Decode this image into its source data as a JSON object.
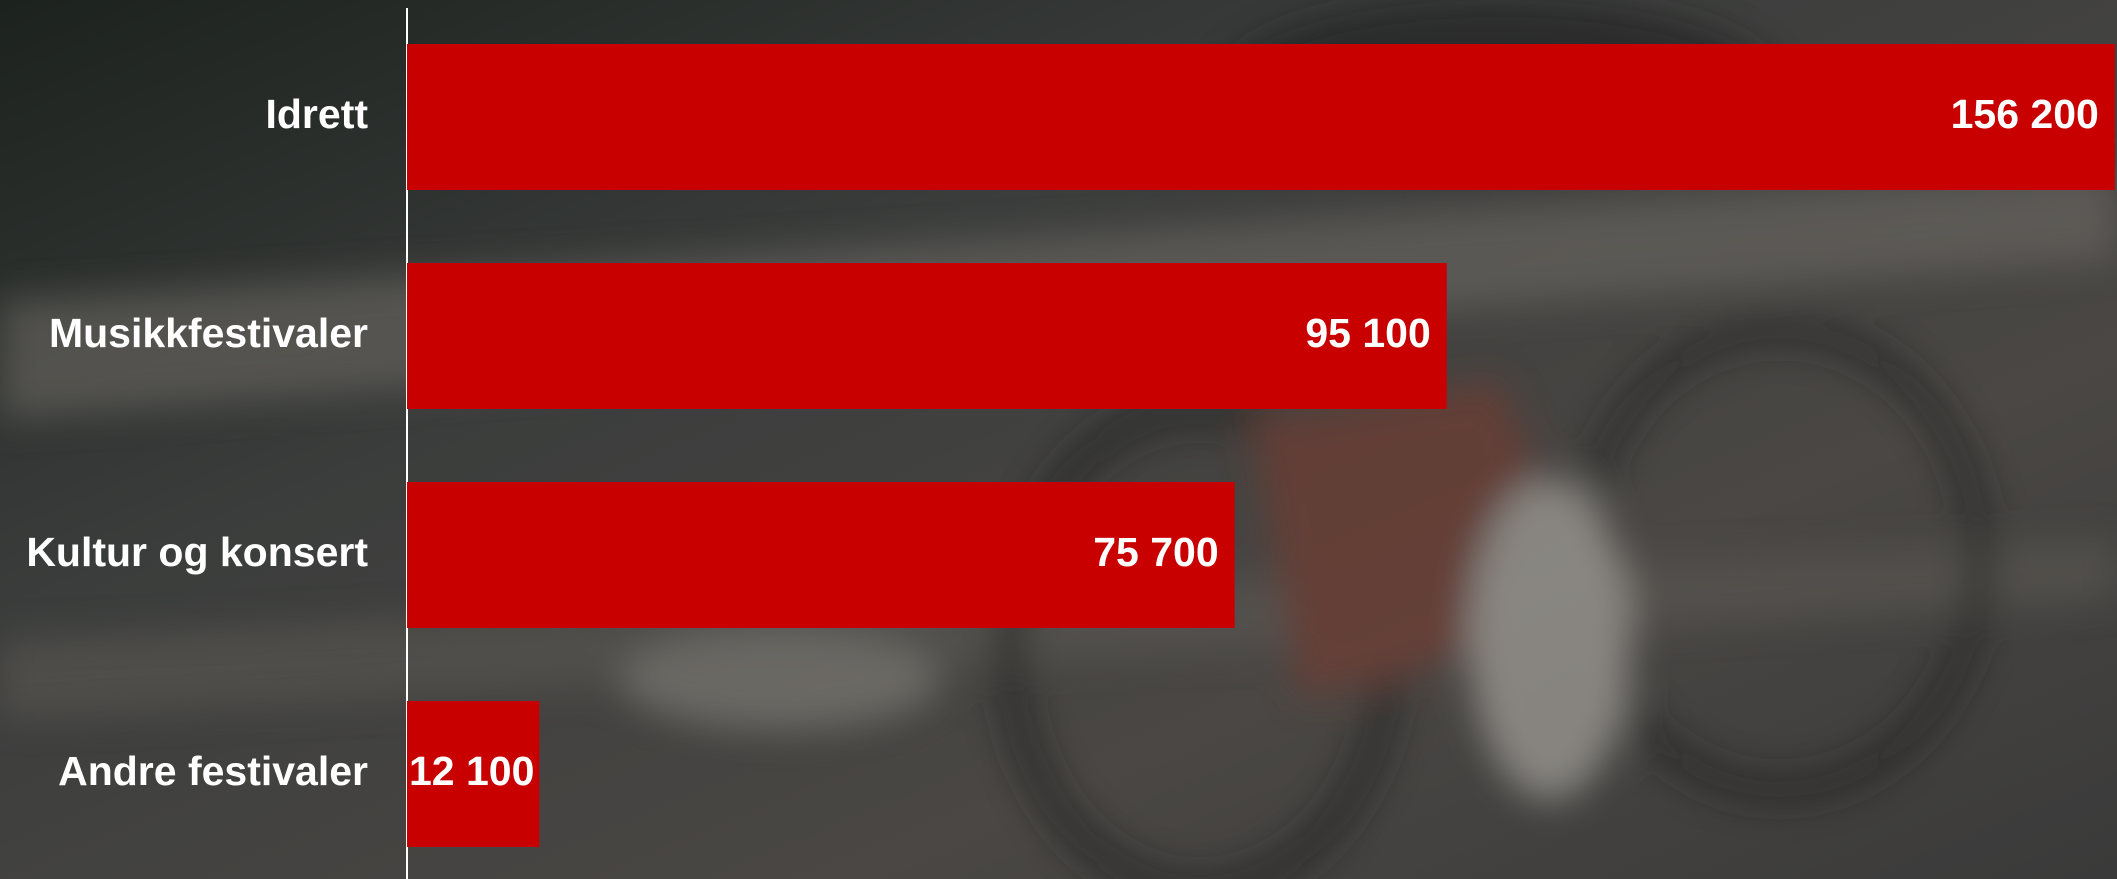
{
  "chart_data": {
    "type": "bar",
    "orientation": "horizontal",
    "categories": [
      "Idrett",
      "Musikkfestivaler",
      "Kultur og konsert",
      "Andre festivaler"
    ],
    "values": [
      156200,
      95100,
      75700,
      12100
    ],
    "value_labels": [
      "156 200",
      "95 100",
      "75 700",
      "12 100"
    ],
    "color": "#c80000",
    "xlim": [
      0,
      156400
    ]
  }
}
